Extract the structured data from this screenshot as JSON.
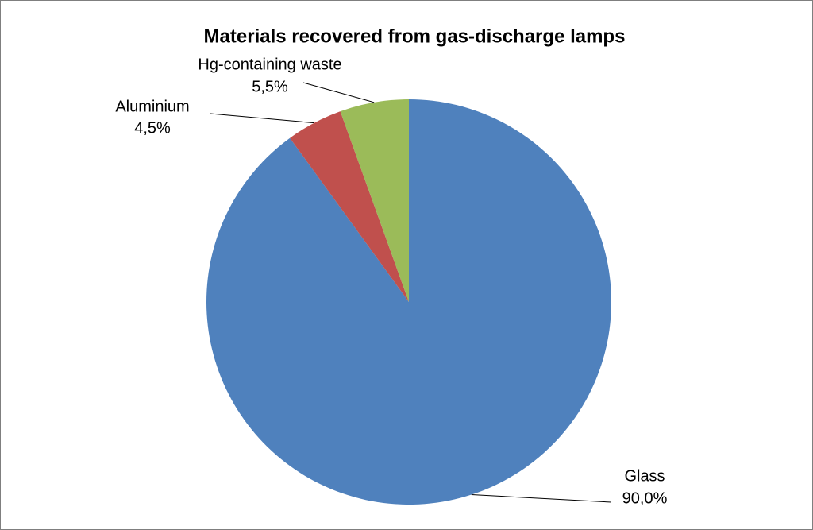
{
  "chart_data": {
    "type": "pie",
    "title": "Materials recovered from gas-discharge lamps",
    "categories": [
      "Glass",
      "Aluminium",
      "Hg-containing waste"
    ],
    "values": [
      90.0,
      4.5,
      5.5
    ],
    "value_labels": [
      "90,0%",
      "4,5%",
      "5,5%"
    ],
    "colors": [
      "#4f81bd",
      "#c0504d",
      "#9bbb59"
    ]
  }
}
